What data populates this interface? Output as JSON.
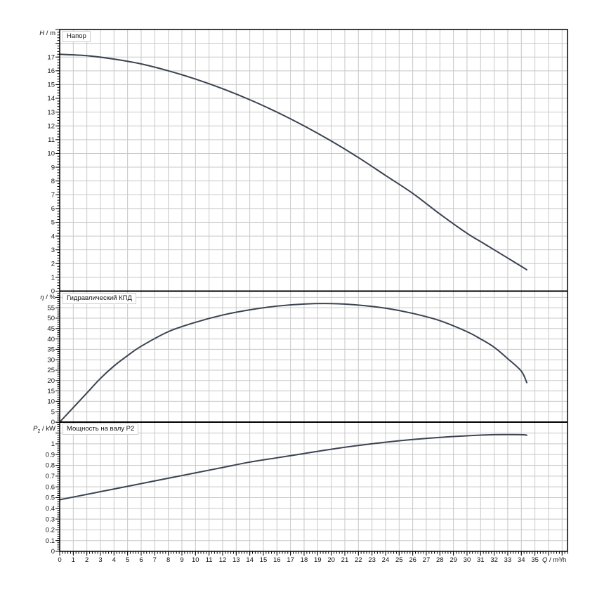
{
  "colors": {
    "background": "#ffffff",
    "curve": "#3b4351",
    "grid": "#c8c8c8",
    "frame": "#000000",
    "text": "#111111"
  },
  "xaxis": {
    "symbol": "Q",
    "unit_suffix": " / m³/h",
    "label": "Q / m³/h",
    "min": 0,
    "max": 37.4,
    "tick_step": 1,
    "minor_step": 0.2,
    "tick_labels": [
      0,
      1,
      2,
      3,
      4,
      5,
      6,
      7,
      8,
      9,
      10,
      11,
      12,
      13,
      14,
      15,
      16,
      17,
      18,
      19,
      20,
      21,
      22,
      23,
      24,
      25,
      26,
      27,
      28,
      29,
      30,
      31,
      32,
      33,
      34,
      35
    ]
  },
  "chart_data": [
    {
      "type": "line",
      "panel": "head",
      "title": "Напор",
      "axis_symbol": "H",
      "axis_sub": "",
      "axis_unit": " / m",
      "ylabel": "H / m",
      "ylim": [
        0,
        19
      ],
      "ytick_step": 1,
      "ytick_minor": 0.2,
      "ytick_labels": [
        0,
        1,
        2,
        3,
        4,
        5,
        6,
        7,
        8,
        9,
        10,
        11,
        12,
        13,
        14,
        15,
        16,
        17
      ],
      "grid": true,
      "series": [
        {
          "name": "H",
          "x": [
            0,
            2,
            4,
            6,
            8,
            10,
            12,
            14,
            16,
            18,
            20,
            22,
            24,
            26,
            28,
            30,
            31,
            32,
            33,
            34,
            34.4
          ],
          "y": [
            17.2,
            17.1,
            16.85,
            16.5,
            16.0,
            15.4,
            14.7,
            13.9,
            13.0,
            12.0,
            10.9,
            9.7,
            8.4,
            7.1,
            5.6,
            4.2,
            3.6,
            3.0,
            2.4,
            1.8,
            1.55
          ]
        }
      ]
    },
    {
      "type": "line",
      "panel": "efficiency",
      "title": "Гидравлический КПД",
      "axis_symbol": "η",
      "axis_sub": "",
      "axis_unit": " / %",
      "ylabel": "η / %",
      "ylim": [
        0,
        63
      ],
      "ytick_step": 5,
      "ytick_minor": 1,
      "ytick_labels": [
        0,
        5,
        10,
        15,
        20,
        25,
        30,
        35,
        40,
        45,
        50,
        55
      ],
      "grid": true,
      "series": [
        {
          "name": "eta",
          "x": [
            0,
            1,
            2,
            3,
            4,
            5,
            6,
            8,
            10,
            12,
            14,
            16,
            18,
            20,
            22,
            24,
            26,
            28,
            30,
            31,
            32,
            33,
            34,
            34.4
          ],
          "y": [
            0,
            7,
            14,
            21,
            27,
            32,
            36.5,
            43.5,
            48,
            51.5,
            54,
            55.8,
            56.8,
            57,
            56.3,
            54.8,
            52.3,
            48.8,
            43.5,
            40,
            36,
            30.5,
            24.5,
            19
          ]
        }
      ]
    },
    {
      "type": "line",
      "panel": "power",
      "title": "Мощность на валу P2",
      "axis_symbol": "P",
      "axis_sub": "2",
      "axis_unit": " / kW",
      "ylabel": "P2 / kW",
      "ylim": [
        0,
        1.202
      ],
      "ytick_step": 0.1,
      "ytick_minor": 0.02,
      "ytick_labels": [
        0,
        0.1,
        0.2,
        0.3,
        0.4,
        0.5,
        0.6,
        0.7,
        0.8,
        0.9,
        1
      ],
      "grid": true,
      "series": [
        {
          "name": "P2",
          "x": [
            0,
            2,
            4,
            6,
            8,
            10,
            12,
            14,
            16,
            18,
            20,
            22,
            24,
            26,
            28,
            30,
            32,
            34,
            34.4
          ],
          "y": [
            0.48,
            0.53,
            0.58,
            0.63,
            0.68,
            0.73,
            0.78,
            0.83,
            0.87,
            0.91,
            0.95,
            0.985,
            1.015,
            1.04,
            1.06,
            1.075,
            1.085,
            1.085,
            1.08
          ]
        }
      ]
    }
  ]
}
